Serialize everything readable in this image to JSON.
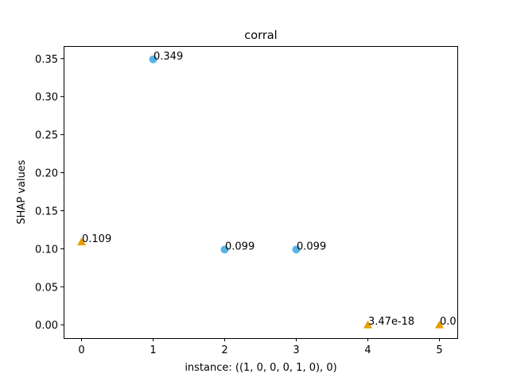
{
  "chart_data": {
    "type": "scatter",
    "title": "corral",
    "xlabel": "instance: ((1, 0, 0, 0, 1, 0), 0)",
    "ylabel": "SHAP values",
    "xlim": [
      -0.25,
      5.25
    ],
    "ylim": [
      -0.0175,
      0.3665
    ],
    "x_ticks": [
      0,
      1,
      2,
      3,
      4,
      5
    ],
    "x_tick_labels": [
      "0",
      "1",
      "2",
      "3",
      "4",
      "5"
    ],
    "y_ticks": [
      0.0,
      0.05,
      0.1,
      0.15,
      0.2,
      0.25,
      0.3,
      0.35
    ],
    "y_tick_labels": [
      "0.00",
      "0.05",
      "0.10",
      "0.15",
      "0.20",
      "0.25",
      "0.30",
      "0.35"
    ],
    "grid": false,
    "legend": "none",
    "series": [
      {
        "marker": "circle",
        "color": "#56b4e9",
        "points": [
          {
            "x": 1,
            "y": 0.349,
            "label": "0.349"
          },
          {
            "x": 2,
            "y": 0.099,
            "label": "0.099"
          },
          {
            "x": 3,
            "y": 0.099,
            "label": "0.099"
          }
        ]
      },
      {
        "marker": "triangle",
        "color": "#e69f00",
        "points": [
          {
            "x": 0,
            "y": 0.109,
            "label": "0.109"
          },
          {
            "x": 4,
            "y": 3.47e-18,
            "label": "3.47e-18"
          },
          {
            "x": 5,
            "y": 0.0,
            "label": "0.0"
          }
        ]
      }
    ]
  }
}
